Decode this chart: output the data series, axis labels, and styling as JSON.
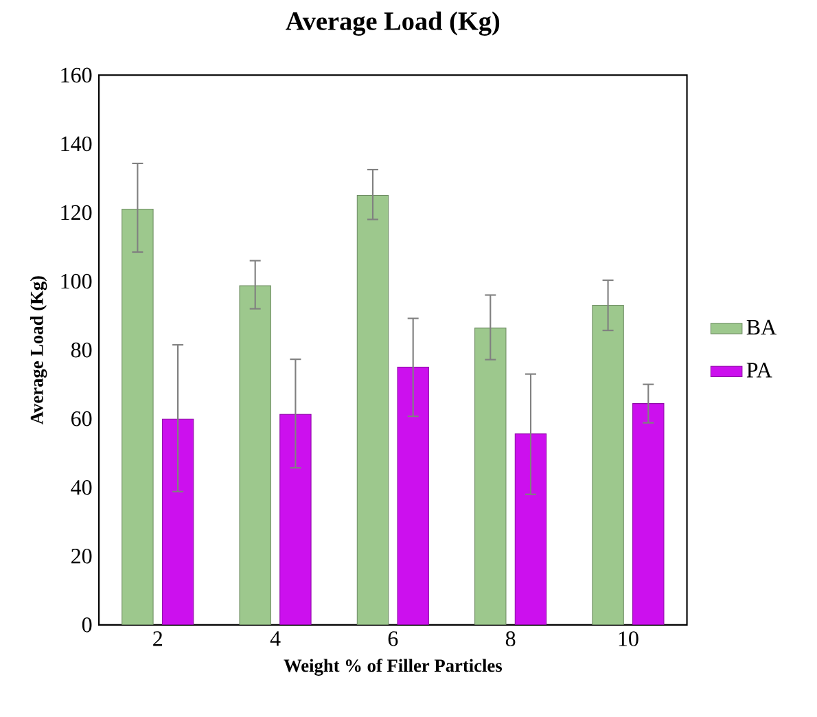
{
  "chart_data": {
    "type": "bar",
    "title": "Average Load (Kg)",
    "xlabel": "Weight % of Filler Particles",
    "ylabel": "Average Load (Kg)",
    "categories": [
      "2",
      "4",
      "6",
      "8",
      "10"
    ],
    "series": [
      {
        "name": "BA",
        "color": "#9dc88d",
        "values": [
          121,
          98.7,
          125,
          86.4,
          93
        ],
        "errors": [
          [
            108.5,
            134.3
          ],
          [
            92,
            106
          ],
          [
            118,
            132.5
          ],
          [
            77.2,
            96
          ],
          [
            85.7,
            100.3
          ]
        ]
      },
      {
        "name": "PA",
        "color": "#cc10ee",
        "values": [
          59.9,
          61.3,
          75,
          55.6,
          64.4
        ],
        "errors": [
          [
            38.8,
            81.5
          ],
          [
            45.7,
            77.3
          ],
          [
            60.7,
            89.2
          ],
          [
            38,
            73
          ],
          [
            58.8,
            70
          ]
        ]
      }
    ],
    "ylim": [
      0,
      160
    ],
    "yticks": [
      0,
      20,
      40,
      60,
      80,
      100,
      120,
      140,
      160
    ],
    "grid": false,
    "legend": "right"
  }
}
